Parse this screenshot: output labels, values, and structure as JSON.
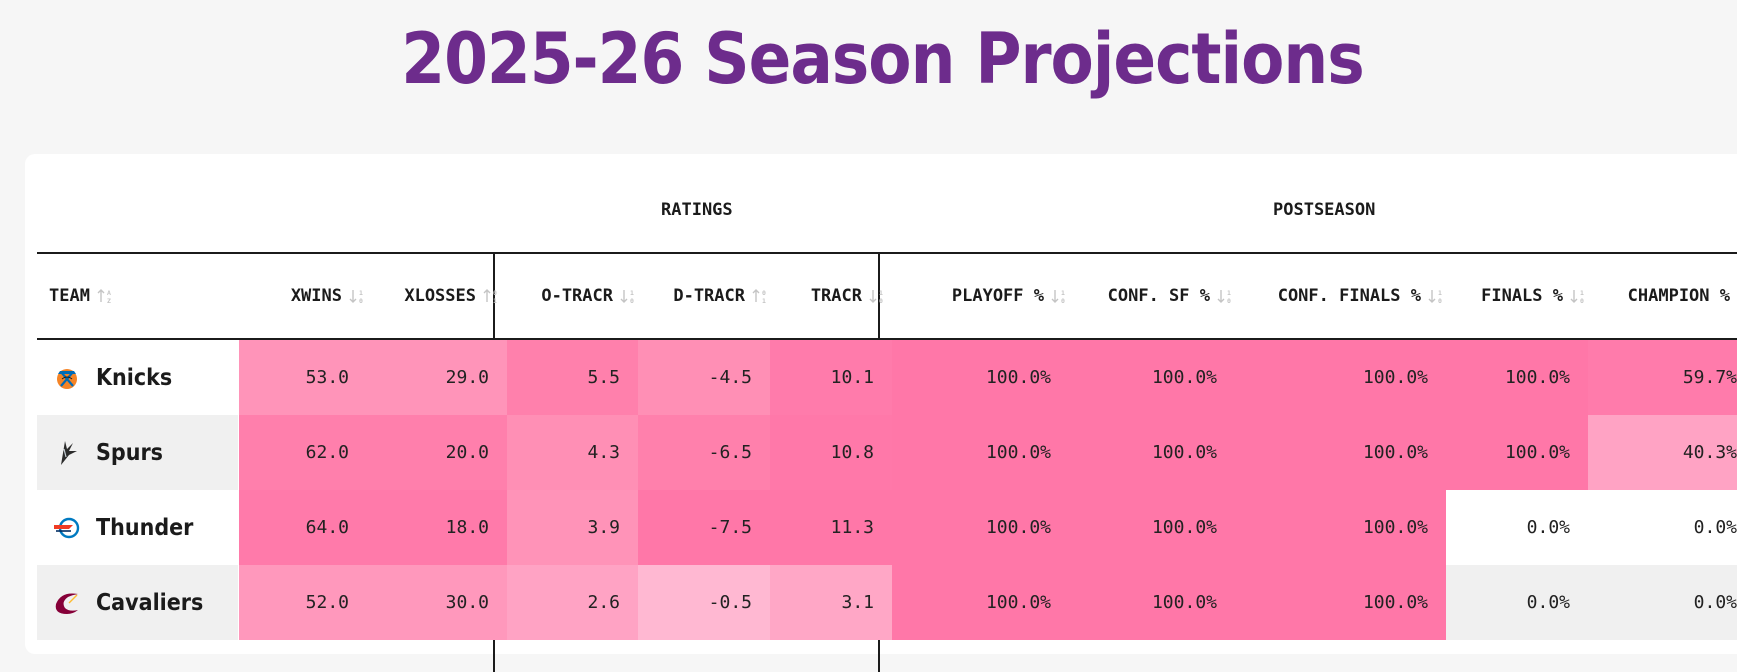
{
  "title": "2025-26 Season Projections",
  "groups": {
    "ratings": "RATINGS",
    "postseason": "POSTSEASON"
  },
  "columns": {
    "team": "TEAM",
    "xwins": "XWINS",
    "xlosses": "XLOSSES",
    "otracr": "O-TRACR",
    "dtracr": "D-TRACR",
    "tracr": "TRACR",
    "playoff": "PLAYOFF %",
    "confsf": "CONF. SF %",
    "conffinals": "CONF. FINALS %",
    "finals": "FINALS %",
    "champion": "CHAMPION %"
  },
  "colors": {
    "title": "#6d2c8c",
    "heat_strong": "#ff77a8",
    "heat_medium": "#ff8fb5",
    "heat_light": "#ffa7c6",
    "heat_lightest": "#ffb8d2",
    "active_sort": "#e8437f"
  },
  "rows": [
    {
      "team": "Knicks",
      "logo": "knicks-logo-icon",
      "xwins": "53.0",
      "xlosses": "29.0",
      "otracr": "5.5",
      "dtracr": "-4.5",
      "tracr": "10.1",
      "playoff": "100.0%",
      "confsf": "100.0%",
      "conffinals": "100.0%",
      "finals": "100.0%",
      "champion": "59.7%"
    },
    {
      "team": "Spurs",
      "logo": "spurs-logo-icon",
      "xwins": "62.0",
      "xlosses": "20.0",
      "otracr": "4.3",
      "dtracr": "-6.5",
      "tracr": "10.8",
      "playoff": "100.0%",
      "confsf": "100.0%",
      "conffinals": "100.0%",
      "finals": "100.0%",
      "champion": "40.3%"
    },
    {
      "team": "Thunder",
      "logo": "thunder-logo-icon",
      "xwins": "64.0",
      "xlosses": "18.0",
      "otracr": "3.9",
      "dtracr": "-7.5",
      "tracr": "11.3",
      "playoff": "100.0%",
      "confsf": "100.0%",
      "conffinals": "100.0%",
      "finals": "0.0%",
      "champion": "0.0%"
    },
    {
      "team": "Cavaliers",
      "logo": "cavaliers-logo-icon",
      "xwins": "52.0",
      "xlosses": "30.0",
      "otracr": "2.6",
      "dtracr": "-0.5",
      "tracr": "3.1",
      "playoff": "100.0%",
      "confsf": "100.0%",
      "conffinals": "100.0%",
      "finals": "0.0%",
      "champion": "0.0%"
    }
  ]
}
